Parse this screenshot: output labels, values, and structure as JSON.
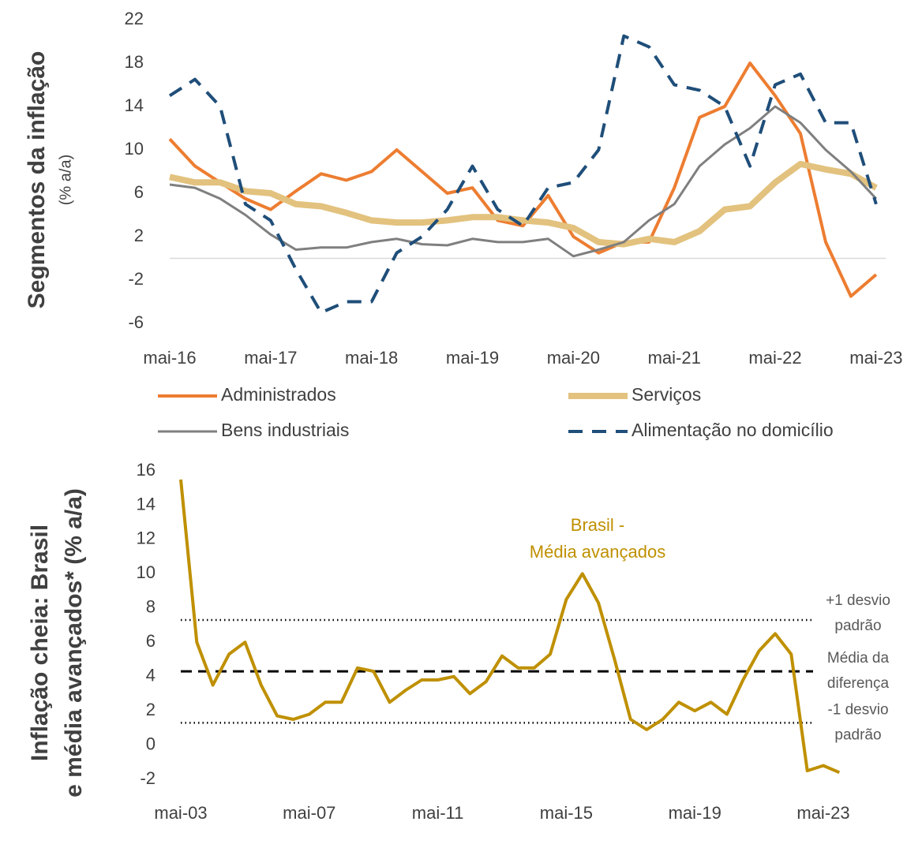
{
  "chart_data": [
    {
      "type": "line",
      "ylabel": [
        "Segmentos da inflação",
        "(% a/a)"
      ],
      "categories": [
        "mai-16",
        null,
        null,
        null,
        "mai-17",
        null,
        null,
        null,
        "mai-18",
        null,
        null,
        null,
        "mai-19",
        null,
        null,
        null,
        "mai-20",
        null,
        null,
        null,
        "mai-21",
        null,
        null,
        null,
        "mai-22",
        null,
        null,
        null,
        "mai-23"
      ],
      "ylim": [
        -6,
        22
      ],
      "yticks": [
        -6,
        -2,
        2,
        6,
        10,
        14,
        18,
        22
      ],
      "series": [
        {
          "name": "Administrados",
          "color": "#ed7d31",
          "values": [
            11,
            8.5,
            7,
            5.5,
            4.5,
            6.2,
            7.8,
            7.2,
            8,
            10,
            8,
            6,
            6.5,
            3.5,
            3,
            5.8,
            2,
            0.5,
            1.5,
            1.5,
            6.5,
            13,
            14,
            18,
            15,
            11.5,
            1.5,
            -3.5,
            -1.5
          ]
        },
        {
          "name": "Serviços",
          "color": "#e2c27e",
          "values": [
            7.5,
            7,
            7,
            6.2,
            6,
            5,
            4.8,
            4.2,
            3.5,
            3.3,
            3.3,
            3.5,
            3.8,
            3.8,
            3.5,
            3.3,
            2.8,
            1.5,
            1.3,
            1.8,
            1.5,
            2.5,
            4.5,
            4.8,
            7,
            8.7,
            8.2,
            7.8,
            6.5
          ]
        },
        {
          "name": "Bens industriais",
          "color": "#7f7f7f",
          "values": [
            6.8,
            6.5,
            5.5,
            4,
            2.2,
            0.8,
            1,
            1,
            1.5,
            1.8,
            1.3,
            1.2,
            1.8,
            1.5,
            1.5,
            1.8,
            0.2,
            0.8,
            1.5,
            3.5,
            5,
            8.5,
            10.5,
            12,
            14,
            12.5,
            10,
            8,
            5.5
          ]
        },
        {
          "name": "Alimentação no domicílio",
          "color": "#1f4e79",
          "dashed": true,
          "values": [
            15,
            16.5,
            14,
            5,
            3.5,
            -1,
            -5,
            -4,
            -4,
            0.5,
            2,
            4.5,
            8.5,
            4.5,
            3,
            6.5,
            7,
            10,
            20.5,
            19.5,
            16,
            15.5,
            14,
            8.5,
            16,
            17,
            12.5,
            12.5,
            5
          ]
        }
      ]
    },
    {
      "type": "line",
      "ylabel": [
        "Inflação cheia: Brasil",
        "e média avançados* (% a/a)"
      ],
      "categories": [
        "mai-03",
        null,
        null,
        null,
        null,
        null,
        null,
        null,
        "mai-07",
        null,
        null,
        null,
        null,
        null,
        null,
        null,
        "mai-11",
        null,
        null,
        null,
        null,
        null,
        null,
        null,
        "mai-15",
        null,
        null,
        null,
        null,
        null,
        null,
        null,
        "mai-19",
        null,
        null,
        null,
        null,
        null,
        null,
        null,
        "mai-23",
        null
      ],
      "ylim": [
        -2,
        16
      ],
      "yticks": [
        -2,
        0,
        2,
        4,
        6,
        8,
        10,
        12,
        14,
        16
      ],
      "series": [
        {
          "color": "#bf9000",
          "values": [
            15.5,
            6,
            3.5,
            5.3,
            6,
            3.5,
            1.7,
            1.5,
            1.8,
            2.5,
            2.5,
            4.5,
            4.3,
            2.5,
            3.2,
            3.8,
            3.8,
            4,
            3,
            3.7,
            5.2,
            4.5,
            4.5,
            5.3,
            8.5,
            10,
            8.3,
            5,
            1.5,
            0.9,
            1.5,
            2.5,
            2,
            2.5,
            1.8,
            3.8,
            5.5,
            6.5,
            5.3,
            -1.5,
            -1.2,
            -1.6
          ]
        }
      ],
      "annotation": [
        "Brasil -",
        "Média avançados"
      ],
      "reference_lines": [
        {
          "value": 7.3,
          "label": [
            "+1 desvio",
            "padrão"
          ]
        },
        {
          "value": 4.3,
          "label": [
            "Média da",
            "diferença"
          ],
          "dashed": true
        },
        {
          "value": 1.3,
          "label": [
            "-1 desvio",
            "padrão"
          ]
        }
      ]
    }
  ]
}
